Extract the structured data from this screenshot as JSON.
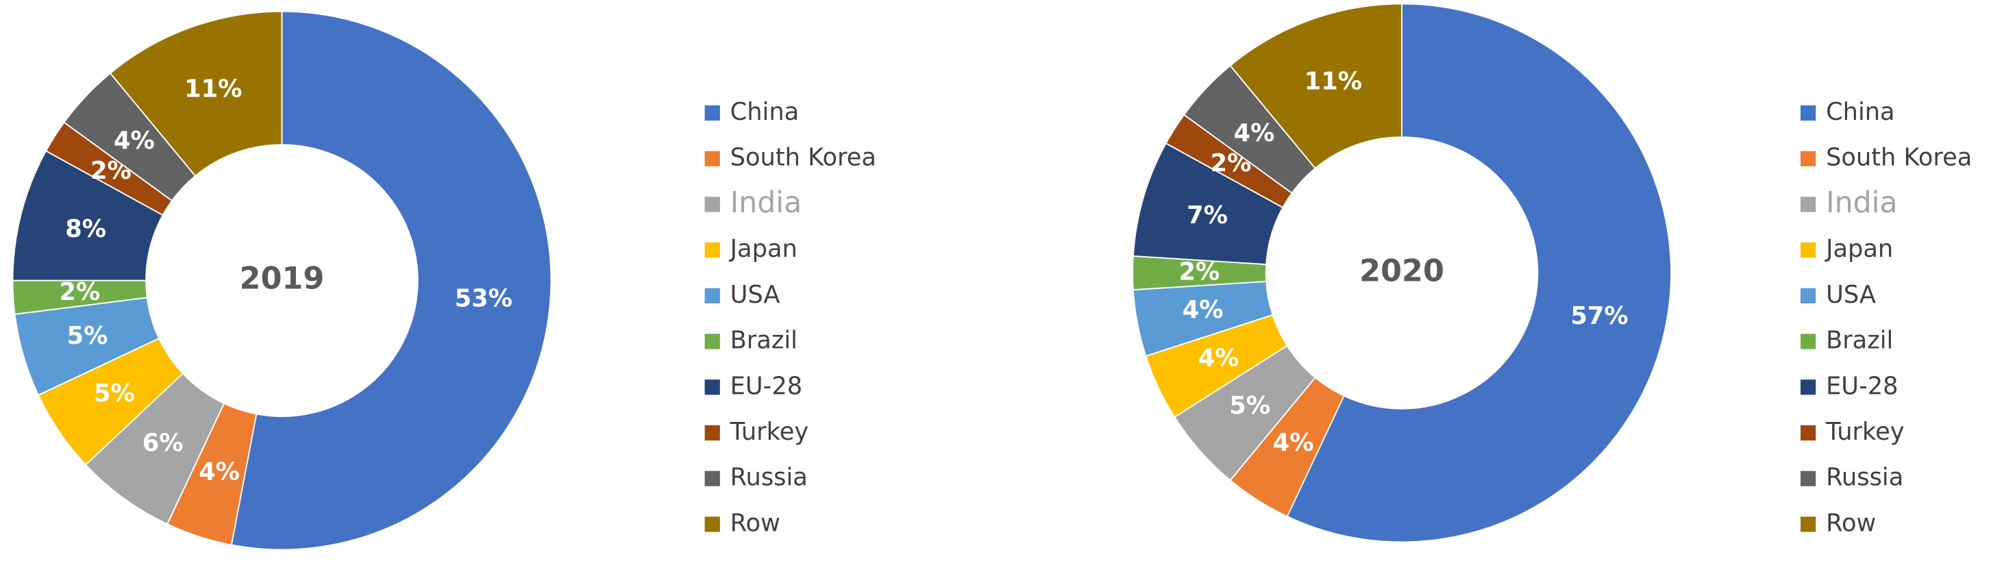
{
  "chart_data": [
    {
      "type": "donut",
      "title": "2019",
      "categories": [
        "China",
        "South Korea",
        "India",
        "Japan",
        "USA",
        "Brazil",
        "EU-28",
        "Turkey",
        "Russia",
        "Row"
      ],
      "values": [
        53,
        4,
        6,
        5,
        5,
        2,
        8,
        2,
        4,
        11
      ],
      "value_labels": [
        "53%",
        "4%",
        "6%",
        "5%",
        "5%",
        "2%",
        "8%",
        "2%",
        "4%",
        "11%"
      ],
      "colors": [
        "#4472c4",
        "#ed7d31",
        "#a5a5a5",
        "#ffc000",
        "#5b9bd5",
        "#70ad47",
        "#264478",
        "#9e480e",
        "#636363",
        "#997300"
      ]
    },
    {
      "type": "donut",
      "title": "2020",
      "categories": [
        "China",
        "South Korea",
        "India",
        "Japan",
        "USA",
        "Brazil",
        "EU-28",
        "Turkey",
        "Russia",
        "Row"
      ],
      "values": [
        57,
        4,
        5,
        4,
        4,
        2,
        7,
        2,
        4,
        11
      ],
      "value_labels": [
        "57%",
        "4%",
        "5%",
        "4%",
        "4%",
        "2%",
        "7%",
        "2%",
        "4%",
        "11%"
      ],
      "colors": [
        "#4472c4",
        "#ed7d31",
        "#a5a5a5",
        "#ffc000",
        "#5b9bd5",
        "#70ad47",
        "#264478",
        "#9e480e",
        "#636363",
        "#997300"
      ]
    }
  ]
}
